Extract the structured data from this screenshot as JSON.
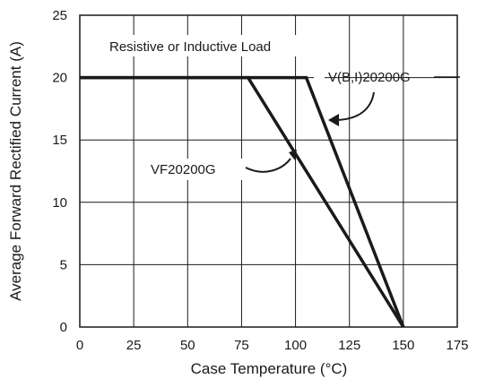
{
  "chart_data": {
    "type": "line",
    "title": "",
    "xlabel": "Case Temperature (°C)",
    "ylabel": "Average Forward Rectified Current (A)",
    "xlim": [
      0,
      175
    ],
    "ylim": [
      0,
      25
    ],
    "x_ticks": [
      "0",
      "25",
      "50",
      "75",
      "100",
      "125",
      "150",
      "175"
    ],
    "y_ticks": [
      "0",
      "5",
      "10",
      "15",
      "20",
      "25"
    ],
    "x_tick_values": [
      0,
      25,
      50,
      75,
      100,
      125,
      150,
      175
    ],
    "y_tick_values": [
      0,
      5,
      10,
      15,
      20,
      25
    ],
    "grid": true,
    "series": [
      {
        "name": "V(B,I)20200G",
        "x": [
          0,
          105,
          150
        ],
        "y": [
          20,
          20,
          0
        ]
      },
      {
        "name": "VF20200G",
        "x": [
          0,
          78,
          150
        ],
        "y": [
          20,
          20,
          0
        ]
      }
    ],
    "annotations": {
      "load": "Resistive or Inductive Load"
    },
    "colors": {
      "line": "#1a1a1a",
      "grid": "#1a1a1a",
      "background": "#ffffff"
    }
  }
}
